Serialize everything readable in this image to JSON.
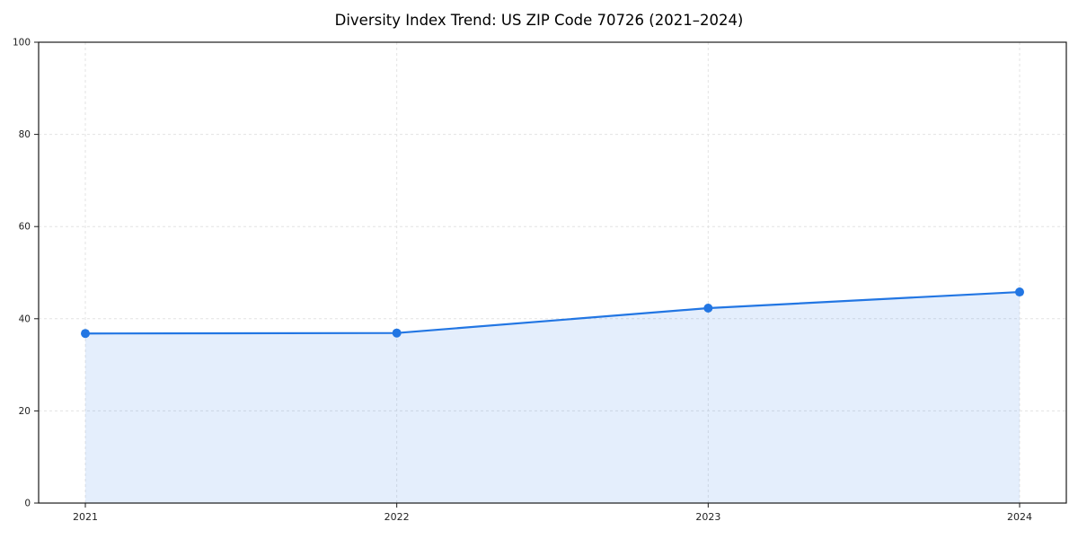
{
  "title": "Diversity Index Trend: US ZIP Code 70726 (2021–2024)",
  "chart_data": {
    "type": "area",
    "title": "Diversity Index Trend: US ZIP Code 70726 (2021–2024)",
    "categories": [
      "2021",
      "2022",
      "2023",
      "2024"
    ],
    "series": [
      {
        "name": "Diversity Index",
        "values": [
          36.8,
          36.9,
          42.3,
          45.8
        ]
      }
    ],
    "xlabel": "",
    "ylabel": "",
    "ylim": [
      0,
      100
    ],
    "yticks": [
      0,
      20,
      40,
      60,
      80,
      100
    ],
    "grid": true,
    "grid_style": "dashed",
    "legend_position": "none",
    "line_color": "#2276e3",
    "fill_color": "rgba(34,118,227,0.12)",
    "grid_color": "#e3e3e3",
    "axis_color": "#1a1a1a",
    "tick_label_color": "#222222"
  }
}
